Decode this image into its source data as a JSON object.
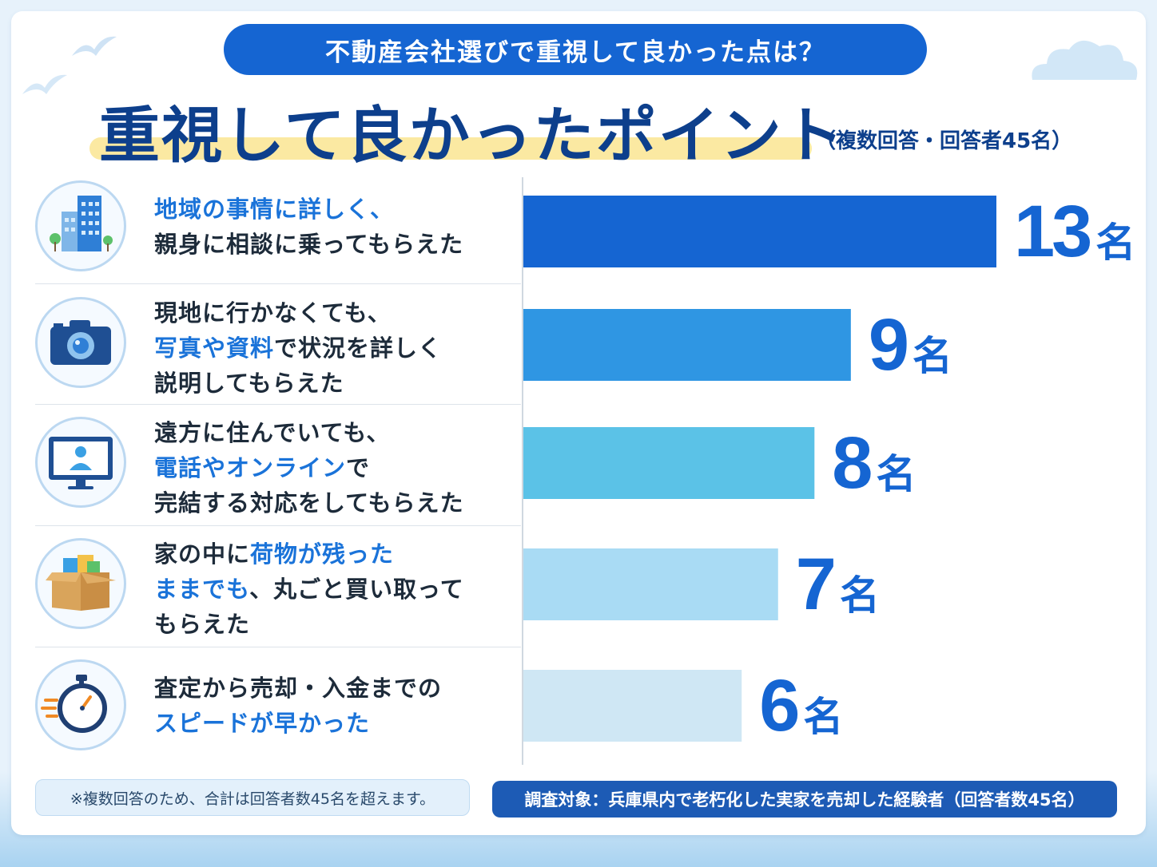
{
  "header": {
    "question": "不動産会社選びで重視して良かった点は？",
    "title": "重視して良かったポイント",
    "title_note": "（複数回答・回答者45名）"
  },
  "items": [
    {
      "icon": "building-icon",
      "segments": [
        {
          "t": "地域の事情に詳しく、",
          "hl": true
        },
        {
          "t": "\n親身に相談に乗ってもらえた",
          "hl": false
        }
      ]
    },
    {
      "icon": "camera-icon",
      "segments": [
        {
          "t": "現地に行かなくても、\n",
          "hl": false
        },
        {
          "t": "写真や資料",
          "hl": true
        },
        {
          "t": "で状況を詳しく\n説明してもらえた",
          "hl": false
        }
      ]
    },
    {
      "icon": "monitor-user-icon",
      "segments": [
        {
          "t": "遠方に住んでいても、\n",
          "hl": false
        },
        {
          "t": "電話やオンライン",
          "hl": true
        },
        {
          "t": "で\n完結する対応をしてもらえた",
          "hl": false
        }
      ]
    },
    {
      "icon": "cardboard-box-icon",
      "segments": [
        {
          "t": "家の中に",
          "hl": false
        },
        {
          "t": "荷物が残った\nままでも",
          "hl": true
        },
        {
          "t": "、丸ごと買い取って\nもらえた",
          "hl": false
        }
      ]
    },
    {
      "icon": "stopwatch-icon",
      "segments": [
        {
          "t": "査定から売却・入金までの\n",
          "hl": false
        },
        {
          "t": "スピードが早かった",
          "hl": true
        }
      ]
    }
  ],
  "chart_data": {
    "type": "bar",
    "orientation": "horizontal",
    "categories": [
      "地域の事情に詳しく、親身に相談に乗ってもらえた",
      "現地に行かなくても、写真や資料で状況を詳しく説明してもらえた",
      "遠方に住んでいても、電話やオンラインで完結する対応をしてもらえた",
      "家の中に荷物が残ったままでも、丸ごと買い取ってもらえた",
      "査定から売却・入金までのスピードが早かった"
    ],
    "values": [
      13,
      9,
      8,
      7,
      6
    ],
    "unit": "名",
    "colors": [
      "#1565d2",
      "#2f96e3",
      "#5bc2e7",
      "#a9dbf4",
      "#cfe7f4"
    ],
    "xlim": [
      0,
      13
    ]
  },
  "footer": {
    "note": "※複数回答のため、合計は回答者数45名を超えます。",
    "survey": "調査対象：兵庫県内で老朽化した実家を売却した経験者（回答者数45名）"
  }
}
